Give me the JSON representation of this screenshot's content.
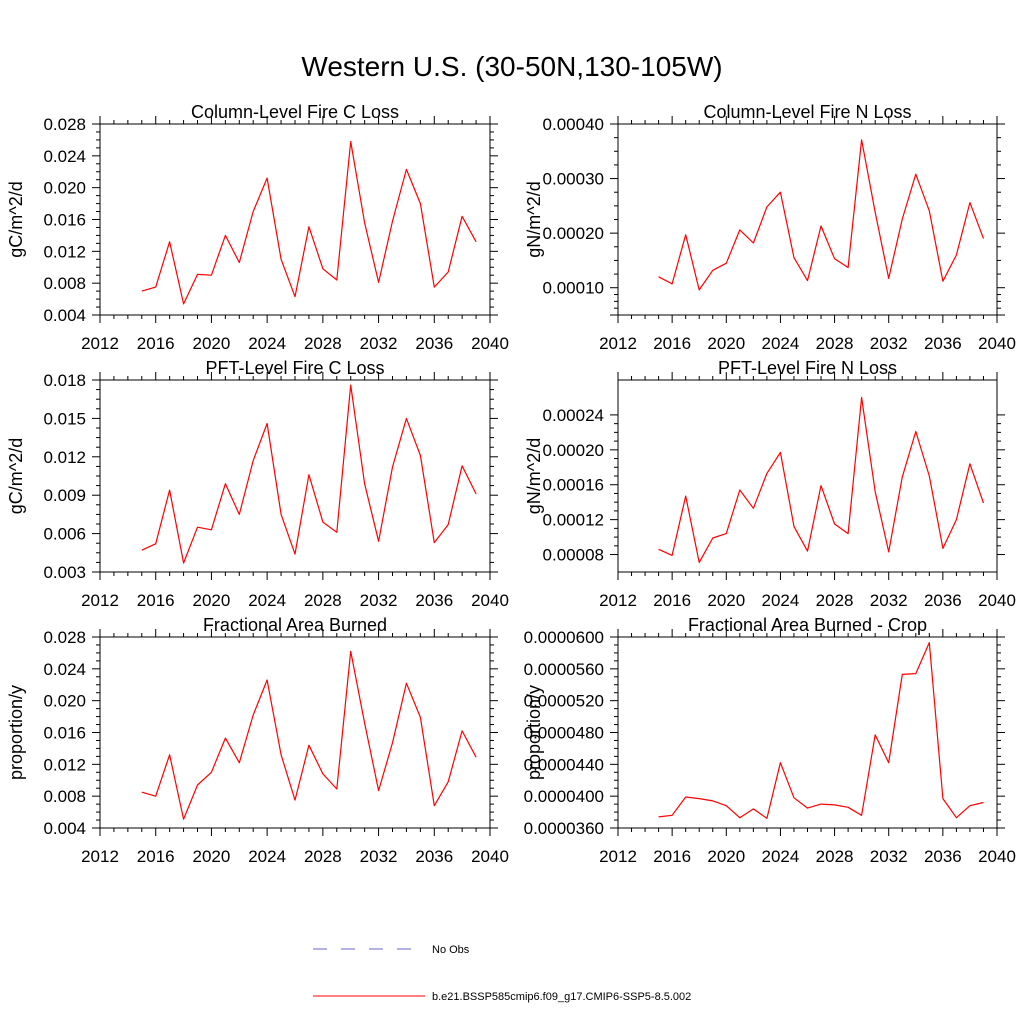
{
  "figure": {
    "title": "Western U.S. (30-50N,130-105W)"
  },
  "legend": {
    "items": [
      {
        "label": "No Obs",
        "style": "dashed",
        "color": "#6666cc"
      },
      {
        "label": "b.e21.BSSP585cmip6.f09_g17.CMIP6-SSP5-8.5.002",
        "style": "solid",
        "color": "#ff0000"
      }
    ]
  },
  "chart_data": [
    {
      "type": "line",
      "title": "Column-Level Fire C Loss",
      "ylabel": "gC/m^2/d",
      "xlim": [
        2012,
        2040
      ],
      "xticks": [
        2012,
        2016,
        2020,
        2024,
        2028,
        2032,
        2036,
        2040
      ],
      "ylim": [
        0.004,
        0.028
      ],
      "yticks": [
        "0.004",
        "0.008",
        "0.012",
        "0.016",
        "0.020",
        "0.024",
        "0.028"
      ],
      "x": [
        2015,
        2016,
        2017,
        2018,
        2019,
        2020,
        2021,
        2022,
        2023,
        2024,
        2025,
        2026,
        2027,
        2028,
        2029,
        2030,
        2031,
        2032,
        2033,
        2034,
        2035,
        2036,
        2037,
        2038,
        2039
      ],
      "series": [
        {
          "color": "#ff0000",
          "values": [
            0.007,
            0.0075,
            0.0132,
            0.0054,
            0.0091,
            0.009,
            0.014,
            0.0106,
            0.017,
            0.0212,
            0.011,
            0.0063,
            0.0151,
            0.0098,
            0.0084,
            0.0258,
            0.0156,
            0.0081,
            0.0158,
            0.0223,
            0.018,
            0.0075,
            0.0094,
            0.0164,
            0.0132
          ]
        }
      ]
    },
    {
      "type": "line",
      "title": "Column-Level Fire N Loss",
      "ylabel": "gN/m^2/d",
      "xlim": [
        2012,
        2040
      ],
      "xticks": [
        2012,
        2016,
        2020,
        2024,
        2028,
        2032,
        2036,
        2040
      ],
      "ylim": [
        5e-05,
        0.0004
      ],
      "yticks": [
        "",
        "0.00010",
        "0.00020",
        "0.00030",
        "0.00040"
      ],
      "ytick_values": [
        5e-05,
        0.0001,
        0.0002,
        0.0003,
        0.0004
      ],
      "x": [
        2015,
        2016,
        2017,
        2018,
        2019,
        2020,
        2021,
        2022,
        2023,
        2024,
        2025,
        2026,
        2027,
        2028,
        2029,
        2030,
        2031,
        2032,
        2033,
        2034,
        2035,
        2036,
        2037,
        2038,
        2039
      ],
      "series": [
        {
          "color": "#ff0000",
          "values": [
            0.00012,
            0.000107,
            0.000197,
            9.6e-05,
            0.000132,
            0.000145,
            0.000206,
            0.000182,
            0.000248,
            0.000275,
            0.000155,
            0.000113,
            0.000213,
            0.000153,
            0.000137,
            0.000371,
            0.000238,
            0.000117,
            0.000226,
            0.000308,
            0.000241,
            0.000112,
            0.00016,
            0.000256,
            0.00019
          ]
        }
      ]
    },
    {
      "type": "line",
      "title": "PFT-Level Fire C Loss",
      "ylabel": "gC/m^2/d",
      "xlim": [
        2012,
        2040
      ],
      "xticks": [
        2012,
        2016,
        2020,
        2024,
        2028,
        2032,
        2036,
        2040
      ],
      "ylim": [
        0.003,
        0.018
      ],
      "yticks": [
        "0.003",
        "0.006",
        "0.009",
        "0.012",
        "0.015",
        "0.018"
      ],
      "x": [
        2015,
        2016,
        2017,
        2018,
        2019,
        2020,
        2021,
        2022,
        2023,
        2024,
        2025,
        2026,
        2027,
        2028,
        2029,
        2030,
        2031,
        2032,
        2033,
        2034,
        2035,
        2036,
        2037,
        2038,
        2039
      ],
      "series": [
        {
          "color": "#ff0000",
          "values": [
            0.0047,
            0.0052,
            0.0094,
            0.0037,
            0.0065,
            0.0063,
            0.0099,
            0.0075,
            0.0117,
            0.0146,
            0.0075,
            0.0044,
            0.0106,
            0.0069,
            0.0061,
            0.0176,
            0.0099,
            0.0054,
            0.0112,
            0.015,
            0.0121,
            0.0053,
            0.0067,
            0.0113,
            0.0091
          ]
        }
      ]
    },
    {
      "type": "line",
      "title": "PFT-Level Fire N Loss",
      "ylabel": "gN/m^2/d",
      "xlim": [
        2012,
        2040
      ],
      "xticks": [
        2012,
        2016,
        2020,
        2024,
        2028,
        2032,
        2036,
        2040
      ],
      "ylim": [
        6e-05,
        0.00028
      ],
      "yticks": [
        "0.00008",
        "0.00012",
        "0.00016",
        "0.00020",
        "0.00024"
      ],
      "ytick_values": [
        8e-05,
        0.00012,
        0.00016,
        0.0002,
        0.00024
      ],
      "x": [
        2015,
        2016,
        2017,
        2018,
        2019,
        2020,
        2021,
        2022,
        2023,
        2024,
        2025,
        2026,
        2027,
        2028,
        2029,
        2030,
        2031,
        2032,
        2033,
        2034,
        2035,
        2036,
        2037,
        2038,
        2039
      ],
      "series": [
        {
          "color": "#ff0000",
          "values": [
            8.6e-05,
            7.9e-05,
            0.000147,
            7.1e-05,
            9.9e-05,
            0.000104,
            0.000154,
            0.000133,
            0.000173,
            0.000197,
            0.000112,
            8.4e-05,
            0.000159,
            0.000115,
            0.000104,
            0.00026,
            0.000152,
            8.3e-05,
            0.000169,
            0.000221,
            0.00017,
            8.7e-05,
            0.00012,
            0.000184,
            0.000139
          ]
        }
      ]
    },
    {
      "type": "line",
      "title": "Fractional Area Burned",
      "ylabel": "proportion/y",
      "xlim": [
        2012,
        2040
      ],
      "xticks": [
        2012,
        2016,
        2020,
        2024,
        2028,
        2032,
        2036,
        2040
      ],
      "ylim": [
        0.004,
        0.028
      ],
      "yticks": [
        "0.004",
        "0.008",
        "0.012",
        "0.016",
        "0.020",
        "0.024",
        "0.028"
      ],
      "x": [
        2015,
        2016,
        2017,
        2018,
        2019,
        2020,
        2021,
        2022,
        2023,
        2024,
        2025,
        2026,
        2027,
        2028,
        2029,
        2030,
        2031,
        2032,
        2033,
        2034,
        2035,
        2036,
        2037,
        2038,
        2039
      ],
      "series": [
        {
          "color": "#ff0000",
          "values": [
            0.0085,
            0.008,
            0.0132,
            0.0051,
            0.0094,
            0.011,
            0.0153,
            0.0122,
            0.0182,
            0.0226,
            0.0132,
            0.0075,
            0.0144,
            0.0108,
            0.0089,
            0.0262,
            0.0172,
            0.0087,
            0.0147,
            0.0222,
            0.0179,
            0.0068,
            0.0098,
            0.0162,
            0.0129
          ]
        }
      ]
    },
    {
      "type": "line",
      "title": "Fractional Area Burned - Crop",
      "ylabel": "proportion/y",
      "xlim": [
        2012,
        2040
      ],
      "xticks": [
        2012,
        2016,
        2020,
        2024,
        2028,
        2032,
        2036,
        2040
      ],
      "ylim": [
        3.6e-05,
        6e-05
      ],
      "yticks": [
        "0.0000360",
        "0.0000400",
        "0.0000440",
        "0.0000480",
        "0.0000520",
        "0.0000560",
        "0.0000600"
      ],
      "x": [
        2015,
        2016,
        2017,
        2018,
        2019,
        2020,
        2021,
        2022,
        2023,
        2024,
        2025,
        2026,
        2027,
        2028,
        2029,
        2030,
        2031,
        2032,
        2033,
        2034,
        2035,
        2036,
        2037,
        2038,
        2039
      ],
      "series": [
        {
          "color": "#ff0000",
          "values": [
            3.74e-05,
            3.76e-05,
            3.99e-05,
            3.97e-05,
            3.94e-05,
            3.88e-05,
            3.73e-05,
            3.84e-05,
            3.72e-05,
            4.42e-05,
            3.98e-05,
            3.85e-05,
            3.9e-05,
            3.89e-05,
            3.86e-05,
            3.76e-05,
            4.77e-05,
            4.42e-05,
            5.53e-05,
            5.54e-05,
            5.93e-05,
            3.97e-05,
            3.73e-05,
            3.88e-05,
            3.92e-05
          ]
        }
      ]
    }
  ]
}
